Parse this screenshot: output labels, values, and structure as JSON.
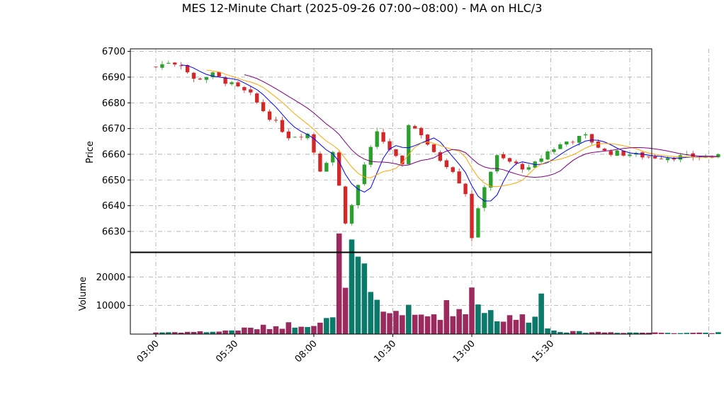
{
  "chart_data": {
    "type": "candlestick",
    "title": "MES 12-Minute Chart (2025-09-26 07:00~08:00) - MA on HLC/3",
    "price_panel": {
      "ylabel": "Price",
      "ylim": [
        6622,
        6701
      ],
      "yticks": [
        "6630",
        "6640",
        "6650",
        "6660",
        "6670",
        "6680",
        "6690",
        "6700"
      ],
      "grid": true
    },
    "volume_panel": {
      "ylabel": "Volume",
      "ylim": [
        0,
        28500
      ],
      "yticks": [
        "10000",
        "20000"
      ],
      "grid": true
    },
    "x_axis": {
      "start": "03:00",
      "end": "20:48",
      "interval_minutes": 12,
      "tick_labels": [
        "03:00",
        "05:30",
        "08:00",
        "10:30",
        "13:00",
        "15:30"
      ]
    },
    "colors": {
      "up": "#2ca02c",
      "down": "#d62728",
      "ma_fast": "#0000ff",
      "ma_mid": "#ffa500",
      "ma_slow": "#800080",
      "volume_up": "#0b7a6a",
      "volume_down": "#9b2a5e",
      "grid": "#aaaaaa"
    },
    "close_keypoints": [
      {
        "t": "03:00",
        "v": 6694
      },
      {
        "t": "03:24",
        "v": 6696
      },
      {
        "t": "03:48",
        "v": 6695
      },
      {
        "t": "04:12",
        "v": 6689
      },
      {
        "t": "04:48",
        "v": 6691
      },
      {
        "t": "05:24",
        "v": 6687
      },
      {
        "t": "06:00",
        "v": 6683
      },
      {
        "t": "06:24",
        "v": 6677
      },
      {
        "t": "06:48",
        "v": 6672
      },
      {
        "t": "07:12",
        "v": 6667
      },
      {
        "t": "07:48",
        "v": 6668
      },
      {
        "t": "08:12",
        "v": 6654
      },
      {
        "t": "08:36",
        "v": 6661
      },
      {
        "t": "09:00",
        "v": 6634
      },
      {
        "t": "09:12",
        "v": 6640
      },
      {
        "t": "09:36",
        "v": 6656
      },
      {
        "t": "10:00",
        "v": 6668
      },
      {
        "t": "10:24",
        "v": 6662
      },
      {
        "t": "10:48",
        "v": 6655
      },
      {
        "t": "11:00",
        "v": 6672
      },
      {
        "t": "11:24",
        "v": 6668
      },
      {
        "t": "11:48",
        "v": 6660
      },
      {
        "t": "12:24",
        "v": 6654
      },
      {
        "t": "12:48",
        "v": 6645
      },
      {
        "t": "13:00",
        "v": 6628
      },
      {
        "t": "13:24",
        "v": 6648
      },
      {
        "t": "13:48",
        "v": 6659
      },
      {
        "t": "14:12",
        "v": 6657
      },
      {
        "t": "14:48",
        "v": 6654
      },
      {
        "t": "15:24",
        "v": 6661
      },
      {
        "t": "16:00",
        "v": 6665
      },
      {
        "t": "16:36",
        "v": 6667
      },
      {
        "t": "17:12",
        "v": 6661
      },
      {
        "t": "18:00",
        "v": 6660
      },
      {
        "t": "18:36",
        "v": 6659
      }
    ],
    "volume_keypoints": [
      {
        "t": "03:00",
        "v": 600
      },
      {
        "t": "05:00",
        "v": 900
      },
      {
        "t": "06:00",
        "v": 2000
      },
      {
        "t": "07:00",
        "v": 3000
      },
      {
        "t": "08:00",
        "v": 4000
      },
      {
        "t": "08:36",
        "v": 5000
      },
      {
        "t": "08:48",
        "v": 27000
      },
      {
        "t": "09:24",
        "v": 24000
      },
      {
        "t": "09:48",
        "v": 12000
      },
      {
        "t": "10:12",
        "v": 7000
      },
      {
        "t": "10:48",
        "v": 9000
      },
      {
        "t": "11:12",
        "v": 6000
      },
      {
        "t": "11:48",
        "v": 7000
      },
      {
        "t": "12:24",
        "v": 10000
      },
      {
        "t": "12:48",
        "v": 7000
      },
      {
        "t": "13:00",
        "v": 18000
      },
      {
        "t": "13:24",
        "v": 9000
      },
      {
        "t": "14:00",
        "v": 5000
      },
      {
        "t": "14:48",
        "v": 6000
      },
      {
        "t": "15:12",
        "v": 13000
      },
      {
        "t": "15:24",
        "v": 2000
      },
      {
        "t": "16:00",
        "v": 800
      },
      {
        "t": "18:36",
        "v": 500
      }
    ]
  }
}
